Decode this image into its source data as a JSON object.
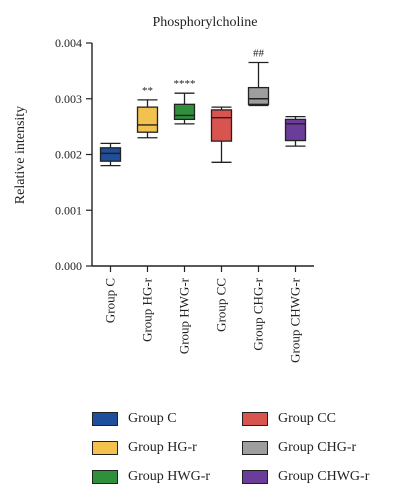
{
  "chart_data": {
    "type": "box",
    "title": "Phosphorylcholine",
    "ylabel": "Relative intensity",
    "ylim": [
      0,
      0.004
    ],
    "yticks": [
      "0.000",
      "0.001",
      "0.002",
      "0.003",
      "0.004"
    ],
    "categories": [
      "Group C",
      "Group HG-r",
      "Group HWG-r",
      "Group CC",
      "Group CHG-r",
      "Group CHWG-r"
    ],
    "colors": [
      "#1f4e9c",
      "#f2c14e",
      "#2f8f3a",
      "#d9534f",
      "#9e9e9e",
      "#6a3d9a"
    ],
    "boxes": [
      {
        "min": 0.0018,
        "q1": 0.00188,
        "median": 0.00202,
        "q3": 0.00212,
        "max": 0.0022
      },
      {
        "min": 0.0023,
        "q1": 0.0024,
        "median": 0.00253,
        "q3": 0.00285,
        "max": 0.00298
      },
      {
        "min": 0.00255,
        "q1": 0.00263,
        "median": 0.0027,
        "q3": 0.0029,
        "max": 0.0031
      },
      {
        "min": 0.00186,
        "q1": 0.00224,
        "median": 0.00266,
        "q3": 0.0028,
        "max": 0.00285
      },
      {
        "min": 0.00288,
        "q1": 0.0029,
        "median": 0.003,
        "q3": 0.0032,
        "max": 0.00365
      },
      {
        "min": 0.00215,
        "q1": 0.00225,
        "median": 0.00255,
        "q3": 0.00263,
        "max": 0.00268
      }
    ],
    "annotations": [
      "",
      "**",
      "****",
      "",
      "##",
      ""
    ]
  },
  "legend": [
    {
      "label": "Group C",
      "color": "#1f4e9c"
    },
    {
      "label": "Group CC",
      "color": "#d9534f"
    },
    {
      "label": "Group HG-r",
      "color": "#f2c14e"
    },
    {
      "label": "Group CHG-r",
      "color": "#9e9e9e"
    },
    {
      "label": "Group HWG-r",
      "color": "#2f8f3a"
    },
    {
      "label": "Group CHWG-r",
      "color": "#6a3d9a"
    }
  ]
}
